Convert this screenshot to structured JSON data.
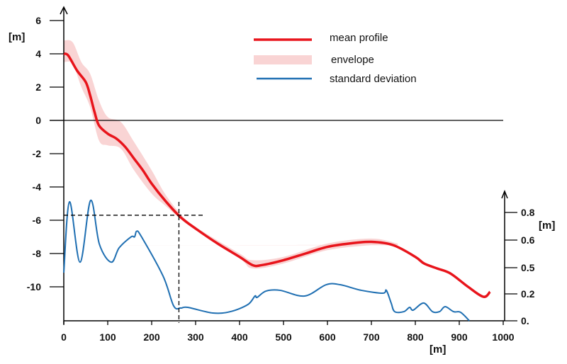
{
  "chart_data": {
    "type": "line",
    "title": "",
    "xlabel": "[m]",
    "ylabel": "[m]",
    "y2label": "[m]",
    "xlim": [
      0,
      1000
    ],
    "ylim": [
      -12,
      6.5
    ],
    "grid": false,
    "legend_position": "top-right",
    "xticks": [
      "0",
      "100",
      "200",
      "300",
      "400",
      "500",
      "600",
      "700",
      "800",
      "900",
      "1000"
    ],
    "xtick_values": [
      0,
      100,
      200,
      300,
      400,
      500,
      600,
      700,
      800,
      900,
      1000
    ],
    "yticks": [
      "6",
      "4",
      "2",
      "0",
      "-2",
      "-4",
      "-6",
      "-8",
      "-10"
    ],
    "ytick_values": [
      6,
      4,
      2,
      0,
      -2,
      -4,
      -6,
      -8,
      -10
    ],
    "y2ticks": [
      "0.8",
      "0.6",
      "0.5",
      "0.2",
      "0."
    ],
    "y2tick_values": [
      0.8,
      0.6,
      0.5,
      0.2,
      0
    ],
    "zero_line": 0,
    "reference_point": {
      "x": 262,
      "y": -5.7
    },
    "series": [
      {
        "name": "mean profile",
        "axis": "left",
        "color": "#e8141b",
        "x": [
          0,
          10,
          30,
          50,
          60,
          70,
          80,
          100,
          120,
          140,
          160,
          180,
          200,
          230,
          265,
          300,
          350,
          400,
          430,
          450,
          500,
          550,
          600,
          650,
          700,
          750,
          800,
          820,
          850,
          880,
          920,
          955,
          970
        ],
        "y": [
          4,
          3.9,
          3,
          2.3,
          1.5,
          0.5,
          -0.3,
          -0.8,
          -1.1,
          -1.6,
          -2.3,
          -3,
          -3.8,
          -4.8,
          -5.8,
          -6.5,
          -7.4,
          -8.2,
          -8.7,
          -8.7,
          -8.4,
          -8.0,
          -7.6,
          -7.4,
          -7.3,
          -7.5,
          -8.2,
          -8.6,
          -8.9,
          -9.2,
          -10,
          -10.6,
          -10.3
        ]
      },
      {
        "name": "envelope",
        "axis": "left",
        "color": "#f9d4d4",
        "x": [
          0,
          20,
          40,
          60,
          80,
          100,
          130,
          160,
          200,
          230,
          265,
          300,
          400,
          430,
          500,
          600,
          700,
          760
        ],
        "lower": [
          3.5,
          3.4,
          2.0,
          0.8,
          -1.2,
          -1.5,
          -1.7,
          -3.0,
          -4.4,
          -5.1,
          -5.9,
          -6.6,
          -8.3,
          -8.9,
          -8.6,
          -7.8,
          -7.5,
          -7.5
        ],
        "upper": [
          4.8,
          4.7,
          3.5,
          2.8,
          1.2,
          0.2,
          -0.1,
          -1.3,
          -3.0,
          -4.4,
          -5.6,
          -6.4,
          -8.0,
          -8.4,
          -8.2,
          -7.4,
          -7.1,
          -7.4
        ]
      },
      {
        "name": "standard deviation",
        "axis": "right",
        "color": "#1f6fb2",
        "x": [
          0,
          13,
          37,
          61,
          81,
          108,
          126,
          153,
          161,
          166,
          177,
          226,
          250,
          266,
          282,
          339,
          379,
          419,
          435,
          440,
          460,
          492,
          548,
          597,
          629,
          677,
          726,
          734,
          745,
          753,
          774,
          787,
          795,
          819,
          839,
          855,
          868,
          887,
          903,
          923
        ],
        "y": [
          0.443,
          0.877,
          0.52,
          0.887,
          0.585,
          0.52,
          0.572,
          0.623,
          0.623,
          0.664,
          0.623,
          0.403,
          0.111,
          0.095,
          0.1,
          0.058,
          0.068,
          0.121,
          0.184,
          0.174,
          0.232,
          0.241,
          0.184,
          0.305,
          0.305,
          0.241,
          0.208,
          0.241,
          0.132,
          0.068,
          0.068,
          0.1,
          0.079,
          0.132,
          0.068,
          0.068,
          0.105,
          0.068,
          0.063,
          0
        ]
      }
    ]
  }
}
